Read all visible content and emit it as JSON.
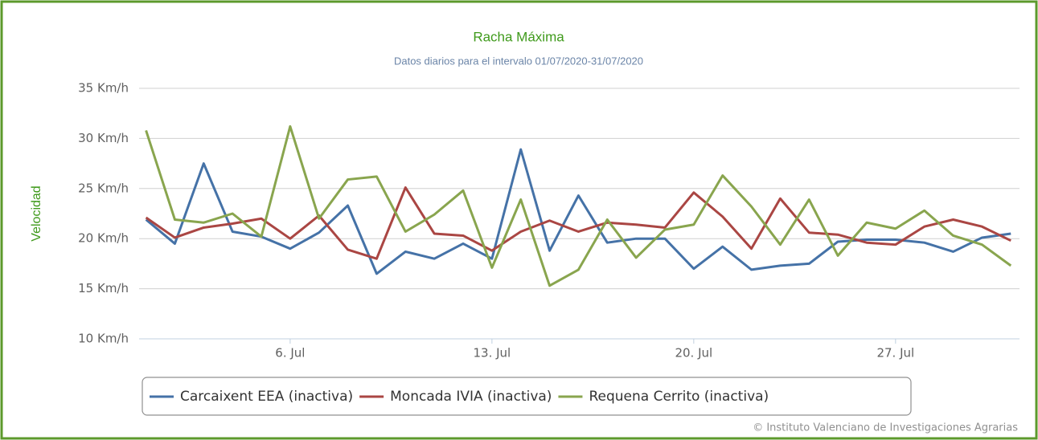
{
  "chart_data": {
    "type": "line",
    "title": "Racha Máxima",
    "subtitle": "Datos diarios para el intervalo 01/07/2020-31/07/2020",
    "y_label": "Velocidad",
    "credits": "© Instituto Valenciano de Investigaciones Agrarias",
    "x": [
      1,
      2,
      3,
      4,
      5,
      6,
      7,
      8,
      9,
      10,
      11,
      12,
      13,
      14,
      15,
      16,
      17,
      18,
      19,
      20,
      21,
      22,
      23,
      24,
      25,
      26,
      27,
      28,
      29,
      30,
      31
    ],
    "xlim": [
      0.76,
      31.3
    ],
    "xticks": [
      {
        "value": 6,
        "label": "6. Jul"
      },
      {
        "value": 13,
        "label": "13. Jul"
      },
      {
        "value": 20,
        "label": "20. Jul"
      },
      {
        "value": 27,
        "label": "27. Jul"
      }
    ],
    "ylim": [
      10,
      35
    ],
    "yticks": [
      {
        "value": 10,
        "label": "10 Km/h"
      },
      {
        "value": 15,
        "label": "15 Km/h"
      },
      {
        "value": 20,
        "label": "20 Km/h"
      },
      {
        "value": 25,
        "label": "25 Km/h"
      },
      {
        "value": 30,
        "label": "30 Km/h"
      },
      {
        "value": 35,
        "label": "35 Km/h"
      }
    ],
    "grid": true,
    "legend": "bottom",
    "series": [
      {
        "name": "Carcaixent EEA (inactiva)",
        "color": "#4572a7",
        "values": [
          21.9,
          19.5,
          27.5,
          20.7,
          20.2,
          19.0,
          20.6,
          23.3,
          16.5,
          18.7,
          18.0,
          19.5,
          18.0,
          28.9,
          18.8,
          24.3,
          19.6,
          20.0,
          20.0,
          17.0,
          19.2,
          16.9,
          17.3,
          17.5,
          19.7,
          19.9,
          19.9,
          19.6,
          18.7,
          20.1,
          20.5
        ]
      },
      {
        "name": "Moncada IVIA (inactiva)",
        "color": "#aa4643",
        "values": [
          22.1,
          20.1,
          21.1,
          21.5,
          22.0,
          20.0,
          22.3,
          18.9,
          18.0,
          25.1,
          20.5,
          20.3,
          18.8,
          20.7,
          21.8,
          20.7,
          21.6,
          21.4,
          21.1,
          24.6,
          22.2,
          19.0,
          24.0,
          20.6,
          20.4,
          19.6,
          19.4,
          21.2,
          21.9,
          21.2,
          19.8
        ]
      },
      {
        "name": "Requena Cerrito (inactiva)",
        "color": "#89a54e",
        "values": [
          30.8,
          21.9,
          21.6,
          22.5,
          20.2,
          31.2,
          22.0,
          25.9,
          26.2,
          20.7,
          22.4,
          24.8,
          17.1,
          23.9,
          15.3,
          16.9,
          21.9,
          18.1,
          20.9,
          21.4,
          26.3,
          23.2,
          19.4,
          23.9,
          18.3,
          21.6,
          21.0,
          22.8,
          20.3,
          19.4,
          17.3
        ]
      }
    ]
  }
}
